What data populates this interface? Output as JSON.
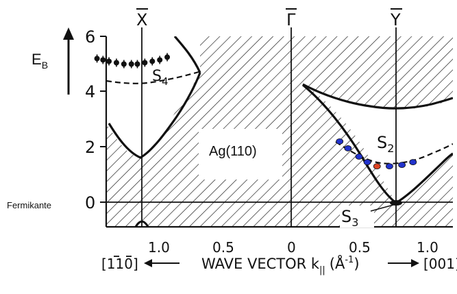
{
  "chart_data": {
    "type": "scatter",
    "title": "",
    "ylabel_main": "E",
    "ylabel_sub": "B",
    "x_axis": {
      "caption": "WAVE VECTOR k",
      "caption_sub": "||",
      "caption_unit": "(Å",
      "caption_unit_exp": "-1",
      "caption_close": ")",
      "left_direction": "[1̅1̅0]",
      "left_direction_text": "[110]",
      "right_direction": "[001]",
      "ticks_left": [
        "1.0",
        "0.5"
      ],
      "tick_center": "0",
      "ticks_right": [
        "0.5",
        "1.0"
      ],
      "tick_values_left": [
        1.0,
        0.5
      ],
      "tick_values_right": [
        0.5,
        1.0
      ]
    },
    "y_axis": {
      "ticks": [
        "6",
        "4",
        "2",
        "0"
      ],
      "tick_values": [
        6,
        4,
        2,
        0
      ],
      "range": [
        -1.0,
        6.0
      ]
    },
    "symmetry_points": [
      "X",
      "Γ",
      "Y"
    ],
    "labels": {
      "material": "Ag(110)",
      "fermi": "Fermikante",
      "s4": "S",
      "s4_sub": "4",
      "s2": "S",
      "s2_sub": "2",
      "s3": "S",
      "s3_sub": "3"
    },
    "series": [
      {
        "name": "S4",
        "direction": "[1-10]",
        "x": [
          1.3,
          1.26,
          1.22,
          1.17,
          1.12,
          1.07,
          1.03,
          0.98,
          0.93,
          0.88,
          0.83
        ],
        "y": [
          5.2,
          5.15,
          5.1,
          5.05,
          5.0,
          5.0,
          5.0,
          5.05,
          5.1,
          5.15,
          5.25
        ],
        "color": "#111111"
      },
      {
        "name": "S2",
        "direction": "[001]",
        "x": [
          0.35,
          0.41,
          0.49,
          0.55,
          0.62,
          0.71,
          0.8,
          0.88
        ],
        "y": [
          2.2,
          1.95,
          1.65,
          1.45,
          1.3,
          1.3,
          1.35,
          1.45
        ],
        "colors": [
          "#2233cc",
          "#2233cc",
          "#2233cc",
          "#2233cc",
          "#dd4422",
          "#2233cc",
          "#2233cc",
          "#2233cc"
        ]
      }
    ],
    "grid": false,
    "legend": "none"
  }
}
